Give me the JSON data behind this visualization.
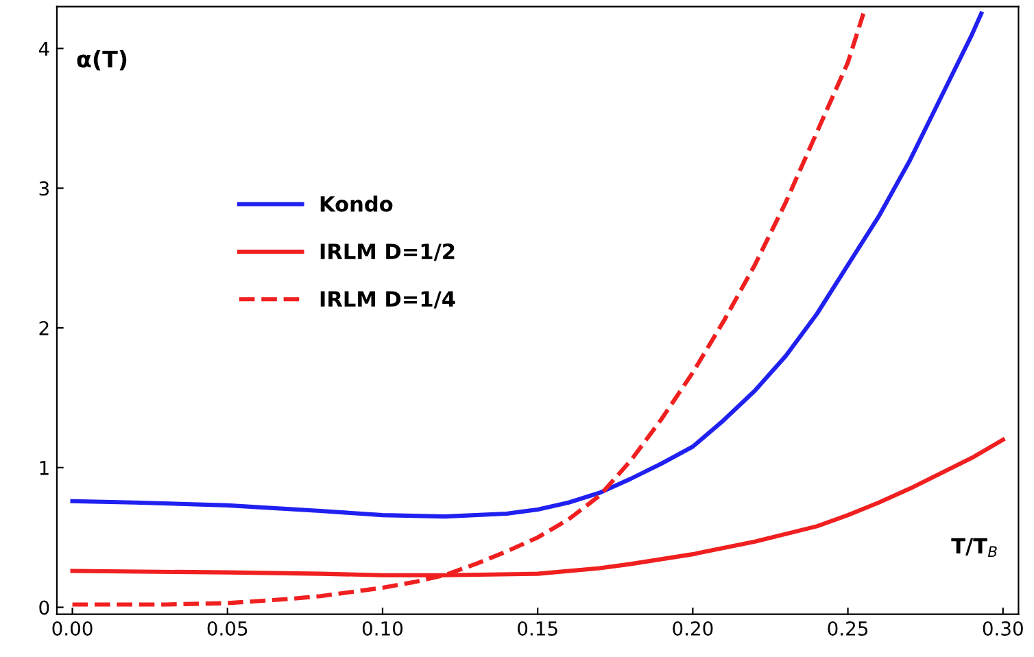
{
  "chart_data": {
    "type": "line",
    "xlabel": "T/T$_{B}$",
    "ylabel": "α(T)",
    "series": [
      {
        "name": "Kondo",
        "color": "#2020f0",
        "line_style": "solid",
        "x": [
          0,
          0.02,
          0.05,
          0.08,
          0.1,
          0.12,
          0.14,
          0.15,
          0.16,
          0.17,
          0.18,
          0.19,
          0.2,
          0.21,
          0.22,
          0.23,
          0.24,
          0.25,
          0.26,
          0.27,
          0.28,
          0.29,
          0.293
        ],
        "values": [
          0.76,
          0.75,
          0.73,
          0.69,
          0.66,
          0.65,
          0.67,
          0.7,
          0.75,
          0.82,
          0.92,
          1.03,
          1.15,
          1.34,
          1.55,
          1.8,
          2.1,
          2.45,
          2.8,
          3.2,
          3.65,
          4.1,
          4.25
        ]
      },
      {
        "name": "IRLM D=1/2",
        "color": "#f02020",
        "line_style": "solid",
        "x": [
          0,
          0.05,
          0.08,
          0.1,
          0.12,
          0.15,
          0.17,
          0.18,
          0.2,
          0.22,
          0.24,
          0.25,
          0.26,
          0.27,
          0.28,
          0.29,
          0.3
        ],
        "values": [
          0.26,
          0.25,
          0.24,
          0.23,
          0.23,
          0.24,
          0.28,
          0.31,
          0.38,
          0.47,
          0.58,
          0.66,
          0.75,
          0.85,
          0.96,
          1.07,
          1.2
        ]
      },
      {
        "name": "IRLM D=1/4",
        "color": "#f02020",
        "line_style": "dashed",
        "x": [
          0,
          0.03,
          0.05,
          0.07,
          0.08,
          0.1,
          0.11,
          0.12,
          0.13,
          0.14,
          0.15,
          0.16,
          0.17,
          0.18,
          0.19,
          0.2,
          0.21,
          0.22,
          0.23,
          0.24,
          0.25,
          0.255
        ],
        "values": [
          0.02,
          0.02,
          0.03,
          0.06,
          0.08,
          0.14,
          0.18,
          0.23,
          0.31,
          0.4,
          0.5,
          0.63,
          0.8,
          1.05,
          1.35,
          1.68,
          2.05,
          2.45,
          2.9,
          3.4,
          3.9,
          4.25
        ]
      }
    ],
    "xlim": [
      -0.005,
      0.305
    ],
    "ylim": [
      -0.05,
      4.3
    ],
    "xticks": [
      {
        "value": 0,
        "label": "0.00"
      },
      {
        "value": 0.05,
        "label": "0.05"
      },
      {
        "value": 0.1,
        "label": "0.10"
      },
      {
        "value": 0.15,
        "label": "0.15"
      },
      {
        "value": 0.2,
        "label": "0.20"
      },
      {
        "value": 0.25,
        "label": "0.25"
      },
      {
        "value": 0.3,
        "label": "0.30"
      }
    ],
    "yticks": [
      0,
      1,
      2,
      3,
      4
    ],
    "grid": false,
    "legend": "top left"
  }
}
